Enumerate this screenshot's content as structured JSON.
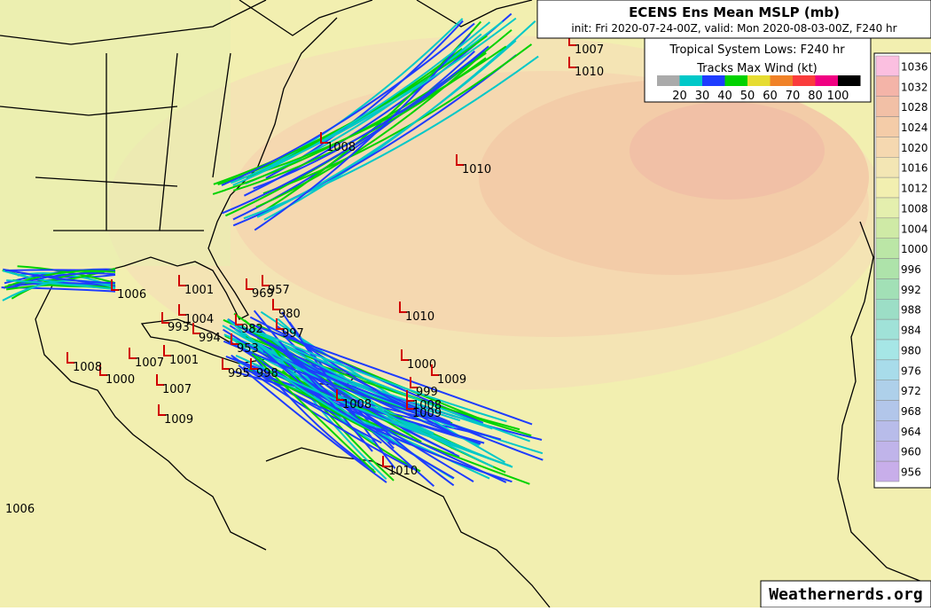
{
  "header": {
    "title": "ECENS Ens Mean MSLP (mb)",
    "subtitle": "init: Fri 2020-07-24-00Z, valid: Mon 2020-08-03-00Z, F240 hr"
  },
  "legend": {
    "title": "Tropical System Lows: F240 hr",
    "tracks_title": "Tracks Max Wind (kt)",
    "wind_colors": [
      "#aaaaaa",
      "#00c8c8",
      "#1e3cff",
      "#00d200",
      "#e6dc32",
      "#f08228",
      "#fa3c3c",
      "#f00082",
      "#000000"
    ],
    "wind_labels": [
      20,
      30,
      40,
      50,
      60,
      70,
      80,
      100
    ]
  },
  "colorbar": {
    "levels": [
      1036,
      1032,
      1028,
      1024,
      1020,
      1016,
      1012,
      1008,
      1004,
      1000,
      996,
      992,
      988,
      984,
      980,
      976,
      972,
      968,
      964,
      960,
      956
    ],
    "colors": [
      "#fbbfe0",
      "#f4b4a8",
      "#f2c0a6",
      "#f4cca8",
      "#f5d8b0",
      "#f3e6b4",
      "#f2efb0",
      "#e4efae",
      "#cfeaa6",
      "#bbe6a6",
      "#aee3aa",
      "#a2e0b6",
      "#9cdec6",
      "#a0e2d8",
      "#a6e6e6",
      "#a8dcea",
      "#aed0ea",
      "#b2c6ea",
      "#b8bcea",
      "#c0b4ea",
      "#c8aeea"
    ]
  },
  "lows": [
    1007,
    1010,
    1008,
    1010,
    1006,
    1001,
    969,
    957,
    980,
    1004,
    993,
    994,
    997,
    982,
    953,
    995,
    998,
    1010,
    1000,
    1009,
    999,
    1008,
    1009,
    1008,
    1010,
    1007,
    1009,
    1000,
    1008,
    1007,
    1001,
    1006
  ],
  "footer": {
    "watermark": "Weathernerds.org"
  }
}
